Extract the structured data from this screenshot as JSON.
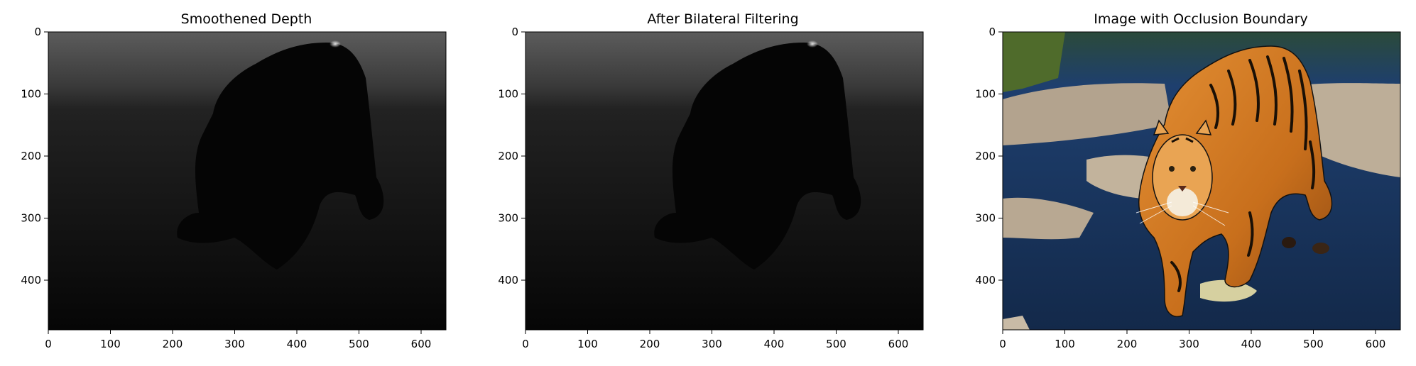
{
  "panels": [
    {
      "title": "Smoothened Depth",
      "kind": "depth",
      "image_description_icon": "depth-map-image",
      "xticks": [
        "0",
        "100",
        "200",
        "300",
        "400",
        "500",
        "600"
      ],
      "yticks": [
        "0",
        "100",
        "200",
        "300",
        "400"
      ],
      "x_range": [
        0,
        640
      ],
      "y_range": [
        480,
        0
      ]
    },
    {
      "title": "After Bilateral Filtering",
      "kind": "depth",
      "image_description_icon": "filtered-depth-map-image",
      "xticks": [
        "0",
        "100",
        "200",
        "300",
        "400",
        "500",
        "600"
      ],
      "yticks": [
        "0",
        "100",
        "200",
        "300",
        "400"
      ],
      "x_range": [
        0,
        640
      ],
      "y_range": [
        480,
        0
      ]
    },
    {
      "title": "Image with Occlusion Boundary",
      "kind": "photo",
      "image_description_icon": "tiger-photo-image",
      "xticks": [
        "0",
        "100",
        "200",
        "300",
        "400",
        "500",
        "600"
      ],
      "yticks": [
        "0",
        "100",
        "200",
        "300",
        "400"
      ],
      "x_range": [
        0,
        640
      ],
      "y_range": [
        480,
        0
      ]
    }
  ],
  "colors": {
    "axis": "#000000",
    "depth_bg_dark": "#0a0a0a",
    "depth_bg_light": "#5a5a5a",
    "water": "#1f3d66",
    "rock": "#b8a894",
    "tiger": "#d9822b",
    "stripe": "#1a1006"
  }
}
